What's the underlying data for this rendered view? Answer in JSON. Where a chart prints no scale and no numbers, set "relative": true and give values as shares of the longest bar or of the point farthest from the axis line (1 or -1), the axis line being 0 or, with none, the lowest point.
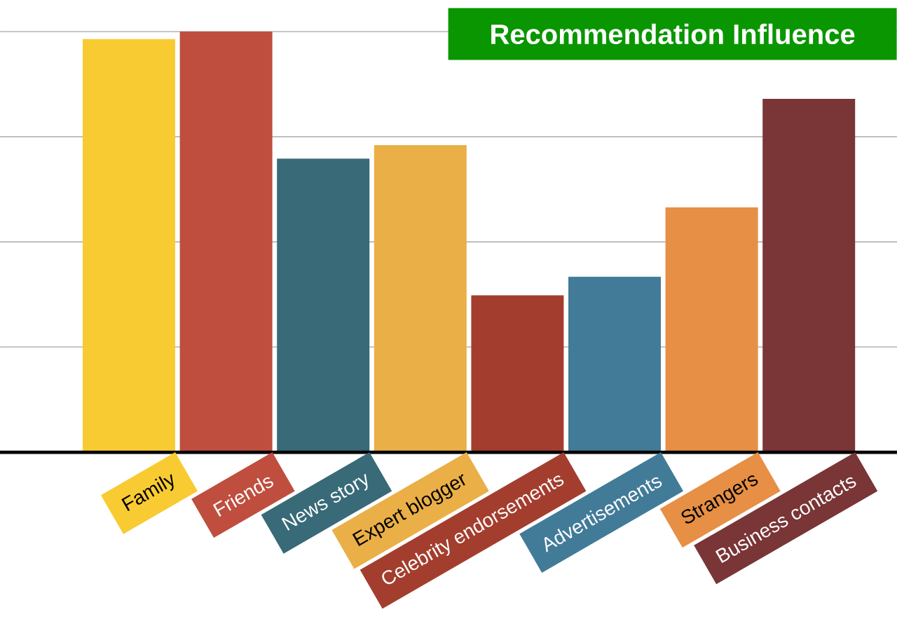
{
  "chart_data": {
    "type": "bar",
    "title": "Recommendation Influence",
    "categories": [
      "Family",
      "Friends",
      "News story",
      "Expert blogger",
      "Celebrity endorsements",
      "Advertisements",
      "Strangers",
      "Business contacts"
    ],
    "values": [
      0.982,
      1,
      0.698,
      0.73,
      0.373,
      0.417,
      0.582,
      0.84
    ],
    "colors": [
      "#f9cb33",
      "#bf4e3f",
      "#386a78",
      "#eaaf46",
      "#a33e2e",
      "#427b98",
      "#e68f45",
      "#7a3536"
    ],
    "relative": true,
    "grid": "y"
  }
}
